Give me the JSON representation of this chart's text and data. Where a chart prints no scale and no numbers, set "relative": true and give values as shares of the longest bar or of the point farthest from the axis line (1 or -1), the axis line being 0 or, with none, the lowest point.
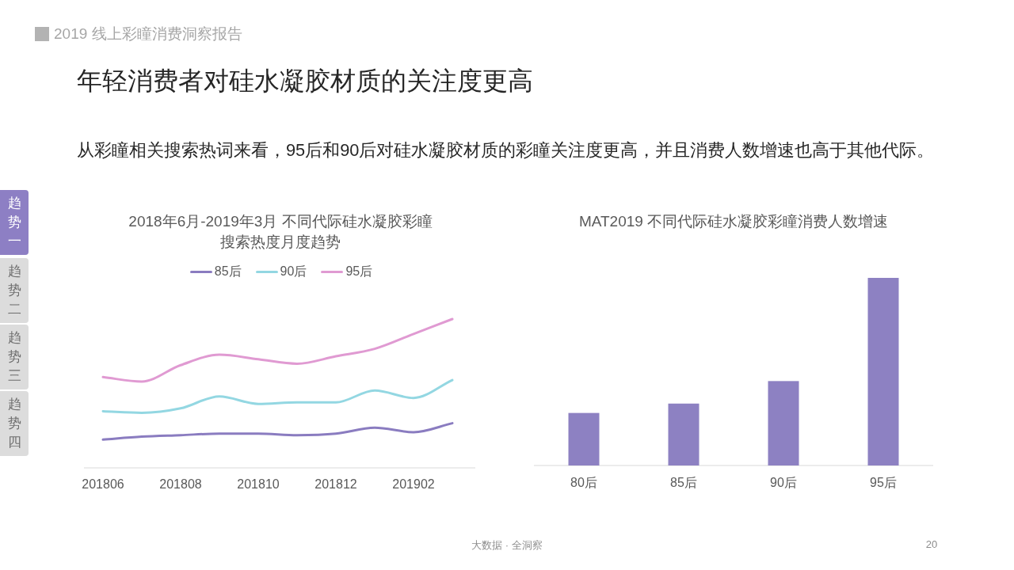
{
  "chart_data": [
    {
      "type": "other",
      "title": "年轻消费者对硅水凝胶材质的关注度更高",
      "subtitle": "从彩瞳相关搜索热词来看，95后和90后对硅水凝胶材质的彩瞳关注度更高，并且消费人数增速也高于其他代际。",
      "annotations": [
        "2019 线上彩瞳消费洞察报告",
        "趋势一",
        "趋势二",
        "趋势三",
        "趋势四",
        "大数据 · 全洞察",
        "20"
      ]
    },
    {
      "type": "line",
      "title": "2018年6月-2019年3月 不同代际硅水凝胶彩瞳搜索热度月度趋势",
      "relative": true,
      "legend": "top",
      "categories": [
        "201806",
        null,
        "201808",
        null,
        "201810",
        null,
        "201812",
        null,
        "201902",
        null
      ],
      "series": [
        {
          "name": "85后",
          "color": "#8a7cc0",
          "values": [
            0.19,
            0.21,
            0.22,
            0.23,
            0.23,
            0.22,
            0.23,
            0.27,
            0.24,
            0.3
          ]
        },
        {
          "name": "90后",
          "color": "#93d7e2",
          "values": [
            0.38,
            0.37,
            0.4,
            0.48,
            0.43,
            0.44,
            0.44,
            0.52,
            0.47,
            0.59
          ]
        },
        {
          "name": "95后",
          "color": "#e09ad2",
          "values": [
            0.61,
            0.58,
            0.69,
            0.76,
            0.73,
            0.7,
            0.75,
            0.8,
            0.9,
            1
          ]
        }
      ]
    },
    {
      "type": "bar",
      "title": "MAT2019 不同代际硅水凝胶彩瞳消费人数增速",
      "relative": true,
      "categories": [
        "80后",
        "85后",
        "90后",
        "95后"
      ],
      "values": [
        0.28,
        0.33,
        0.45,
        1
      ],
      "color": "#8d81c2"
    }
  ]
}
